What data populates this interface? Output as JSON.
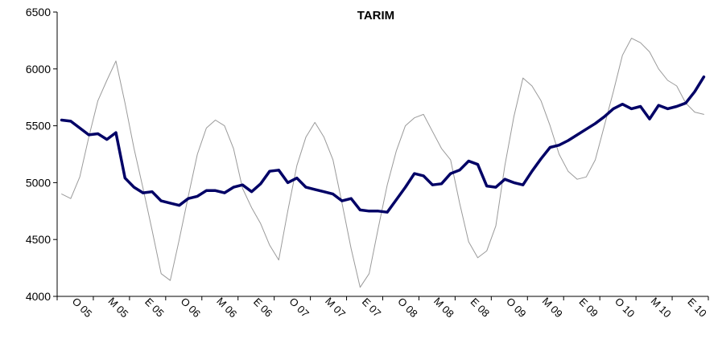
{
  "chart_data": {
    "type": "line",
    "title": "TARIM",
    "xlabel": "",
    "ylabel": "",
    "ylim": [
      4000,
      6500
    ],
    "yticks": [
      4000,
      4500,
      5000,
      5500,
      6000,
      6500
    ],
    "grid": false,
    "legend": "none",
    "xtick_labels": [
      "O 05",
      "M 05",
      "E 05",
      "O 06",
      "M 06",
      "E 06",
      "O 07",
      "M 07",
      "E 07",
      "O 08",
      "M 08",
      "E 08",
      "O 09",
      "M 09",
      "E 09",
      "O 10",
      "M 10",
      "E 10"
    ],
    "n_points": 72,
    "series": [
      {
        "color": "#9a9a9a",
        "width": 1,
        "values": [
          4900,
          4860,
          5050,
          5400,
          5720,
          5900,
          6070,
          5700,
          5300,
          4950,
          4580,
          4200,
          4140,
          4500,
          4880,
          5250,
          5480,
          5550,
          5500,
          5300,
          4950,
          4780,
          4640,
          4450,
          4320,
          4750,
          5150,
          5400,
          5530,
          5400,
          5200,
          4820,
          4420,
          4080,
          4200,
          4600,
          4980,
          5280,
          5500,
          5570,
          5600,
          5450,
          5300,
          5200,
          4820,
          4480,
          4340,
          4400,
          4620,
          5150,
          5580,
          5920,
          5850,
          5720,
          5500,
          5250,
          5100,
          5030,
          5050,
          5200,
          5500,
          5800,
          6120,
          6270,
          6230,
          6150,
          6000,
          5900,
          5850,
          5700,
          5620,
          5600
        ]
      },
      {
        "color": "#000066",
        "width": 3.5,
        "values": [
          5550,
          5540,
          5480,
          5420,
          5430,
          5380,
          5440,
          5040,
          4960,
          4910,
          4920,
          4840,
          4820,
          4800,
          4860,
          4880,
          4930,
          4930,
          4910,
          4960,
          4980,
          4920,
          4990,
          5100,
          5110,
          5000,
          5040,
          4960,
          4940,
          4920,
          4900,
          4840,
          4860,
          4760,
          4750,
          4750,
          4740,
          4850,
          4960,
          5080,
          5060,
          4980,
          4990,
          5080,
          5110,
          5190,
          5160,
          4970,
          4960,
          5030,
          5000,
          4980,
          5100,
          5210,
          5310,
          5330,
          5370,
          5420,
          5470,
          5520,
          5580,
          5650,
          5690,
          5650,
          5670,
          5560,
          5680,
          5650,
          5670,
          5700,
          5800,
          5930
        ]
      }
    ]
  }
}
